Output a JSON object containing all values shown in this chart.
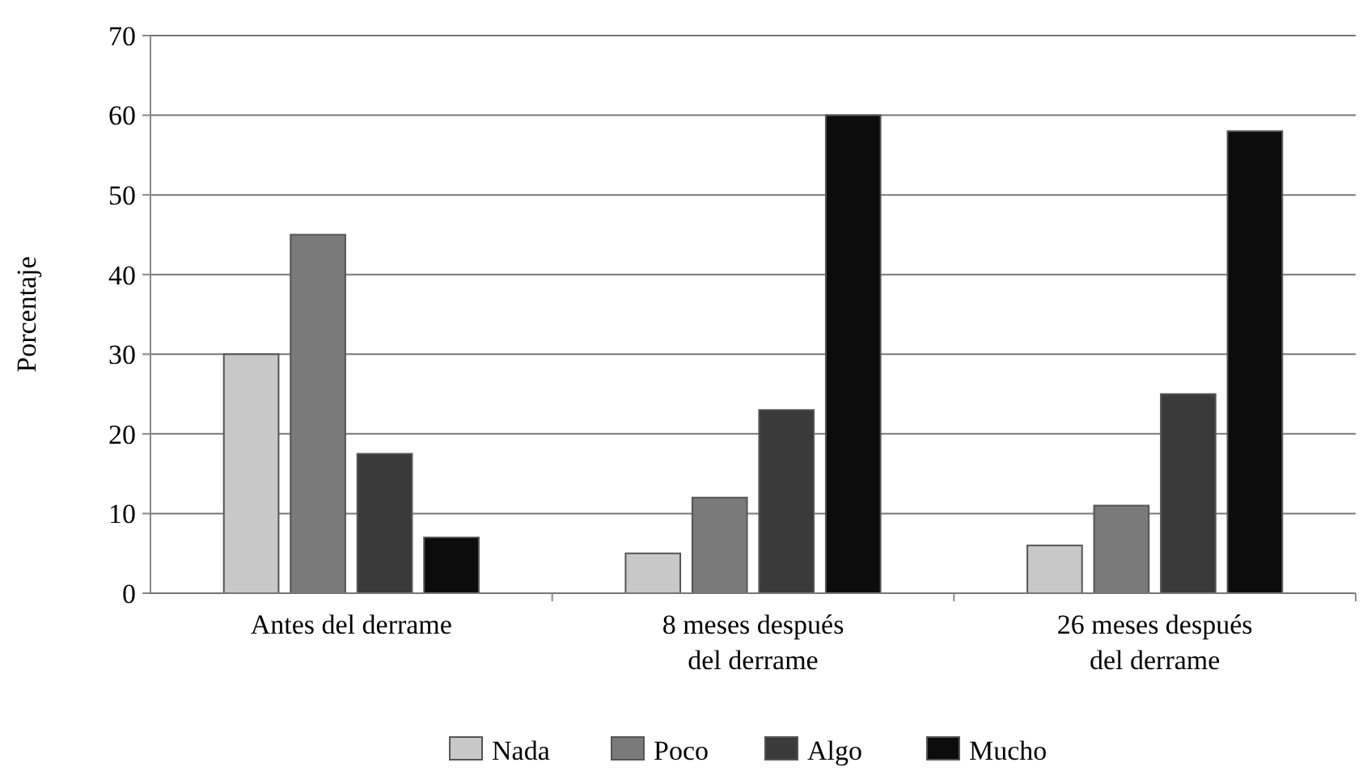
{
  "chart_data": {
    "type": "bar",
    "ylabel": "Porcentaje",
    "categories": [
      "Antes del derrame",
      "8 meses después\ndel derrame",
      "26 meses después\ndel derrame"
    ],
    "series": [
      {
        "name": "Nada",
        "color": "#c8c8c8",
        "values": [
          30,
          5,
          6
        ]
      },
      {
        "name": "Poco",
        "color": "#7a7a7a",
        "values": [
          45,
          12,
          11
        ]
      },
      {
        "name": "Algo",
        "color": "#3a3a3a",
        "values": [
          17.5,
          23,
          25
        ]
      },
      {
        "name": "Mucho",
        "color": "#0c0c0c",
        "values": [
          7,
          60,
          58
        ]
      }
    ],
    "ylim": [
      0,
      70
    ],
    "yticks": [
      0,
      10,
      20,
      30,
      40,
      50,
      60,
      70
    ],
    "grid": "y",
    "legend": "bottom"
  }
}
